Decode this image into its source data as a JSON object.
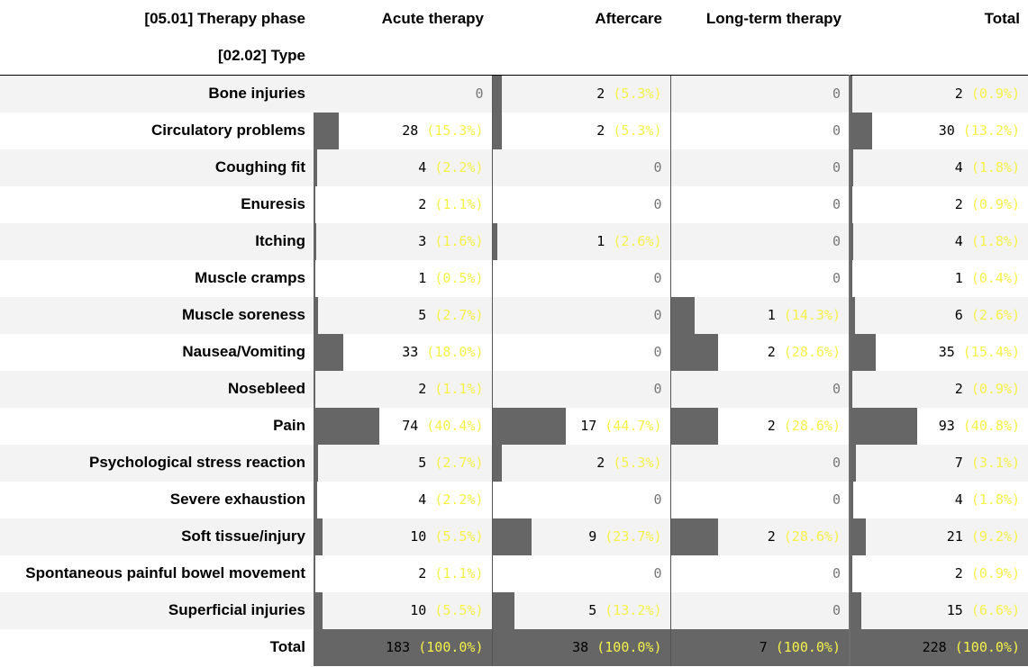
{
  "header": {
    "col_dim_label": "[05.01] Therapy phase",
    "row_dim_label": "[02.02] Type",
    "columns": [
      "Acute therapy",
      "Aftercare",
      "Long-term therapy",
      "Total"
    ]
  },
  "rows": [
    {
      "label": "Bone injuries",
      "cells": [
        {
          "n": "0",
          "p": ""
        },
        {
          "n": "2",
          "p": "(5.3%)",
          "f": 0.053
        },
        {
          "n": "0",
          "p": ""
        },
        {
          "n": "2",
          "p": "(0.9%)",
          "f": 0.009
        }
      ]
    },
    {
      "label": "Circulatory problems",
      "cells": [
        {
          "n": "28",
          "p": "(15.3%)",
          "f": 0.153
        },
        {
          "n": "2",
          "p": "(5.3%)",
          "f": 0.053
        },
        {
          "n": "0",
          "p": ""
        },
        {
          "n": "30",
          "p": "(13.2%)",
          "f": 0.132
        }
      ]
    },
    {
      "label": "Coughing fit",
      "cells": [
        {
          "n": "4",
          "p": "(2.2%)",
          "f": 0.022
        },
        {
          "n": "0",
          "p": ""
        },
        {
          "n": "0",
          "p": ""
        },
        {
          "n": "4",
          "p": "(1.8%)",
          "f": 0.018
        }
      ]
    },
    {
      "label": "Enuresis",
      "cells": [
        {
          "n": "2",
          "p": "(1.1%)",
          "f": 0.011
        },
        {
          "n": "0",
          "p": ""
        },
        {
          "n": "0",
          "p": ""
        },
        {
          "n": "2",
          "p": "(0.9%)",
          "f": 0.009
        }
      ]
    },
    {
      "label": "Itching",
      "cells": [
        {
          "n": "3",
          "p": "(1.6%)",
          "f": 0.016
        },
        {
          "n": "1",
          "p": "(2.6%)",
          "f": 0.026
        },
        {
          "n": "0",
          "p": ""
        },
        {
          "n": "4",
          "p": "(1.8%)",
          "f": 0.018
        }
      ]
    },
    {
      "label": "Muscle cramps",
      "cells": [
        {
          "n": "1",
          "p": "(0.5%)",
          "f": 0.005
        },
        {
          "n": "0",
          "p": ""
        },
        {
          "n": "0",
          "p": ""
        },
        {
          "n": "1",
          "p": "(0.4%)",
          "f": 0.004
        }
      ]
    },
    {
      "label": "Muscle soreness",
      "cells": [
        {
          "n": "5",
          "p": "(2.7%)",
          "f": 0.027
        },
        {
          "n": "0",
          "p": ""
        },
        {
          "n": "1",
          "p": "(14.3%)",
          "f": 0.143
        },
        {
          "n": "6",
          "p": "(2.6%)",
          "f": 0.026
        }
      ]
    },
    {
      "label": "Nausea/Vomiting",
      "cells": [
        {
          "n": "33",
          "p": "(18.0%)",
          "f": 0.18
        },
        {
          "n": "0",
          "p": ""
        },
        {
          "n": "2",
          "p": "(28.6%)",
          "f": 0.286
        },
        {
          "n": "35",
          "p": "(15.4%)",
          "f": 0.154
        }
      ]
    },
    {
      "label": "Nosebleed",
      "cells": [
        {
          "n": "2",
          "p": "(1.1%)",
          "f": 0.011
        },
        {
          "n": "0",
          "p": ""
        },
        {
          "n": "0",
          "p": ""
        },
        {
          "n": "2",
          "p": "(0.9%)",
          "f": 0.009
        }
      ]
    },
    {
      "label": "Pain",
      "cells": [
        {
          "n": "74",
          "p": "(40.4%)",
          "f": 0.404
        },
        {
          "n": "17",
          "p": "(44.7%)",
          "f": 0.447
        },
        {
          "n": "2",
          "p": "(28.6%)",
          "f": 0.286
        },
        {
          "n": "93",
          "p": "(40.8%)",
          "f": 0.408
        }
      ]
    },
    {
      "label": "Psychological stress reaction",
      "cells": [
        {
          "n": "5",
          "p": "(2.7%)",
          "f": 0.027
        },
        {
          "n": "2",
          "p": "(5.3%)",
          "f": 0.053
        },
        {
          "n": "0",
          "p": ""
        },
        {
          "n": "7",
          "p": "(3.1%)",
          "f": 0.031
        }
      ]
    },
    {
      "label": "Severe exhaustion",
      "cells": [
        {
          "n": "4",
          "p": "(2.2%)",
          "f": 0.022
        },
        {
          "n": "0",
          "p": ""
        },
        {
          "n": "0",
          "p": ""
        },
        {
          "n": "4",
          "p": "(1.8%)",
          "f": 0.018
        }
      ]
    },
    {
      "label": "Soft tissue/injury",
      "cells": [
        {
          "n": "10",
          "p": "(5.5%)",
          "f": 0.055
        },
        {
          "n": "9",
          "p": "(23.7%)",
          "f": 0.237
        },
        {
          "n": "2",
          "p": "(28.6%)",
          "f": 0.286
        },
        {
          "n": "21",
          "p": "(9.2%)",
          "f": 0.092
        }
      ]
    },
    {
      "label": "Spontaneous painful bowel movement",
      "cells": [
        {
          "n": "2",
          "p": "(1.1%)",
          "f": 0.011
        },
        {
          "n": "0",
          "p": ""
        },
        {
          "n": "0",
          "p": ""
        },
        {
          "n": "2",
          "p": "(0.9%)",
          "f": 0.009
        }
      ]
    },
    {
      "label": "Superficial injuries",
      "cells": [
        {
          "n": "10",
          "p": "(5.5%)",
          "f": 0.055
        },
        {
          "n": "5",
          "p": "(13.2%)",
          "f": 0.132
        },
        {
          "n": "0",
          "p": ""
        },
        {
          "n": "15",
          "p": "(6.6%)",
          "f": 0.066
        }
      ]
    }
  ],
  "total_row": {
    "label": "Total",
    "cells": [
      {
        "n": "183",
        "p": "(100.0%)"
      },
      {
        "n": "38",
        "p": "(100.0%)"
      },
      {
        "n": "7",
        "p": "(100.0%)"
      },
      {
        "n": "228",
        "p": "(100.0%)"
      }
    ]
  },
  "colors": {
    "bar": "#666666",
    "percent": "#f5f24a",
    "zero": "#777777",
    "row_alt": "#f3f3f3"
  }
}
